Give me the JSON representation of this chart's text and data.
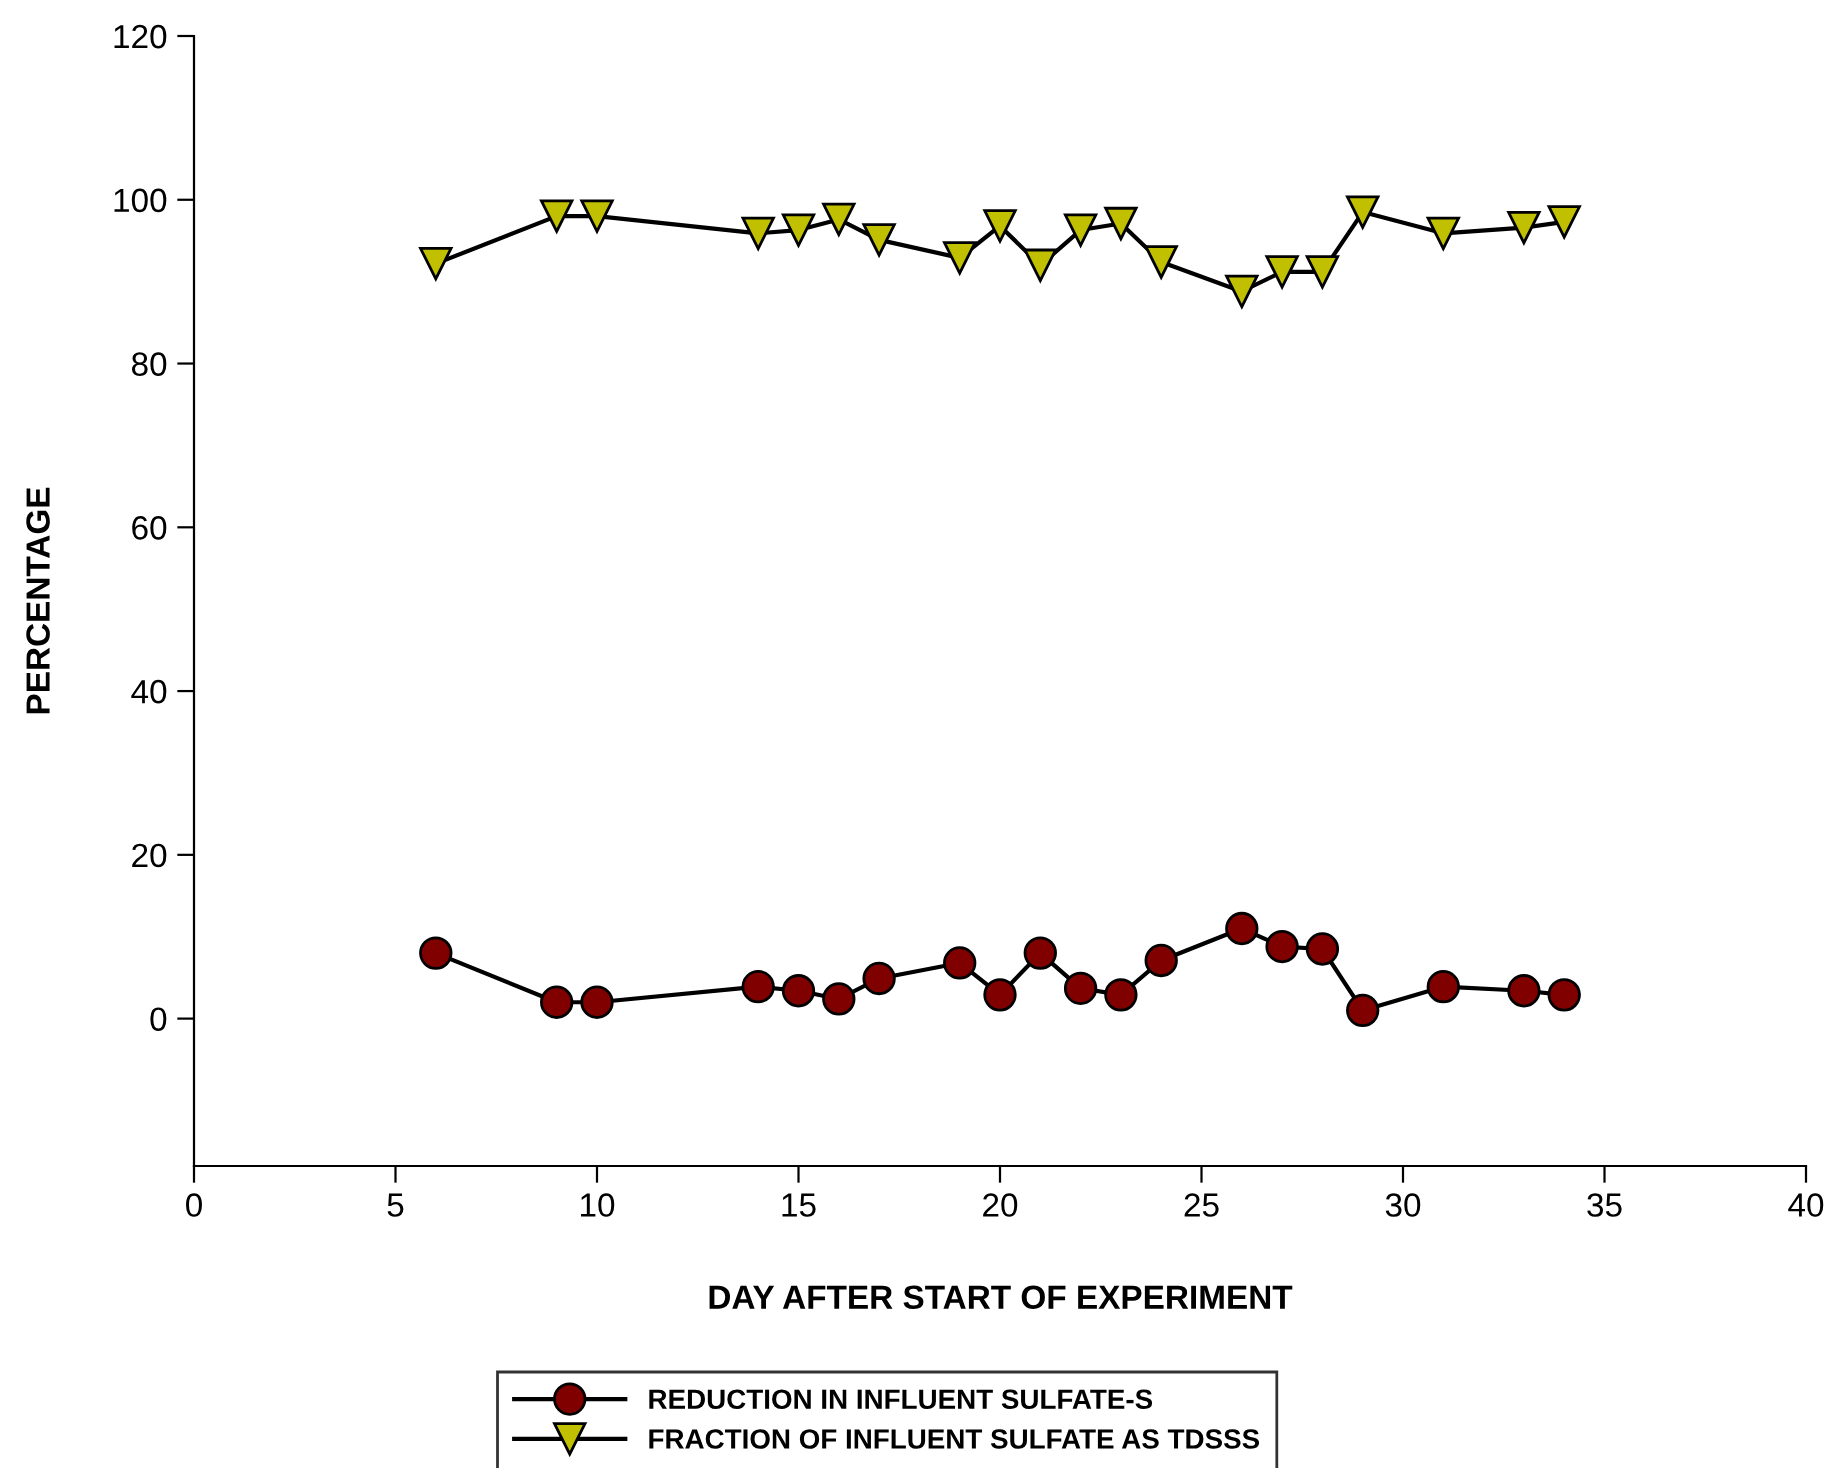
{
  "chart_data": {
    "type": "line",
    "xlabel": "DAY AFTER START OF EXPERIMENT",
    "ylabel": "PERCENTAGE",
    "x": [
      6,
      9,
      10,
      14,
      15,
      16,
      17,
      19,
      20,
      21,
      22,
      23,
      24,
      26,
      27,
      28,
      29,
      31,
      33,
      34
    ],
    "series": [
      {
        "name": "REDUCTION IN INFLUENT SULFATE-S",
        "color": "#800000",
        "marker": "circle",
        "values": [
          8,
          2,
          2,
          3.9,
          3.4,
          2.4,
          4.9,
          6.8,
          2.9,
          8,
          3.7,
          2.9,
          7.1,
          11,
          8.8,
          8.5,
          1,
          3.9,
          3.4,
          2.9
        ]
      },
      {
        "name": "FRACTION OF INFLUENT SULFATE AS TDSSS",
        "color": "#c0c000",
        "marker": "triangle",
        "values": [
          92.2,
          98,
          98,
          95.9,
          96.3,
          97.6,
          95.1,
          92.9,
          96.8,
          92,
          96.3,
          97.1,
          92.4,
          88.8,
          91.2,
          91.2,
          98.5,
          95.9,
          96.6,
          97.3
        ]
      }
    ],
    "xlim": [
      0,
      40
    ],
    "xticks": [
      0,
      5,
      10,
      15,
      20,
      25,
      30,
      35,
      40
    ],
    "ylim": [
      -18,
      120
    ],
    "yticks": [
      0,
      20,
      40,
      60,
      80,
      100,
      120
    ],
    "grid": false,
    "legend": "bottom",
    "line_style": "solid"
  }
}
